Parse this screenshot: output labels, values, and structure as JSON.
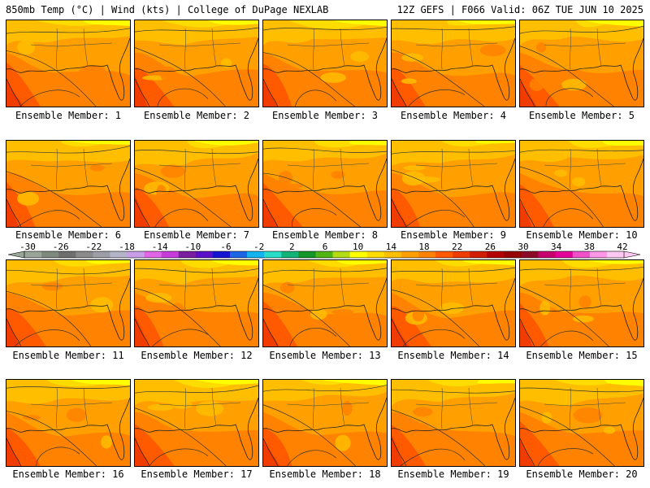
{
  "header": {
    "left": "850mb Temp (°C) | Wind (kts) | College of DuPage NEXLAB",
    "right": "12Z GEFS | F066 Valid: 06Z TUE JUN 10 2025"
  },
  "panel_label_prefix": "Ensemble Member: ",
  "members": [
    "1",
    "2",
    "3",
    "4",
    "5",
    "6",
    "7",
    "8",
    "9",
    "10",
    "11",
    "12",
    "13",
    "14",
    "15",
    "16",
    "17",
    "18",
    "19",
    "20"
  ],
  "colorbar": {
    "labels": [
      "-30",
      "-26",
      "-22",
      "-18",
      "-14",
      "-10",
      "-6",
      "-2",
      "2",
      "6",
      "10",
      "14",
      "18",
      "22",
      "26",
      "30",
      "34",
      "38",
      "42"
    ],
    "colors": [
      "#9aa59a",
      "#7f8a7f",
      "#6e6e6e",
      "#8a8a8a",
      "#9e9ea6",
      "#b4b4c8",
      "#c89ee6",
      "#e066e6",
      "#c83cdc",
      "#7a1ea0",
      "#5a10c8",
      "#1414d2",
      "#1e64e6",
      "#14b4f0",
      "#28dcc8",
      "#14b478",
      "#149628",
      "#50b414",
      "#b4dc14",
      "#ffff00",
      "#ffdc00",
      "#ffbe00",
      "#ffa000",
      "#ff8200",
      "#ff5a00",
      "#f03c00",
      "#d21e00",
      "#b40000",
      "#960000",
      "#8c0a28",
      "#c8006e",
      "#e6009a",
      "#f050c8",
      "#ff96e6",
      "#ffc8f0"
    ]
  }
}
